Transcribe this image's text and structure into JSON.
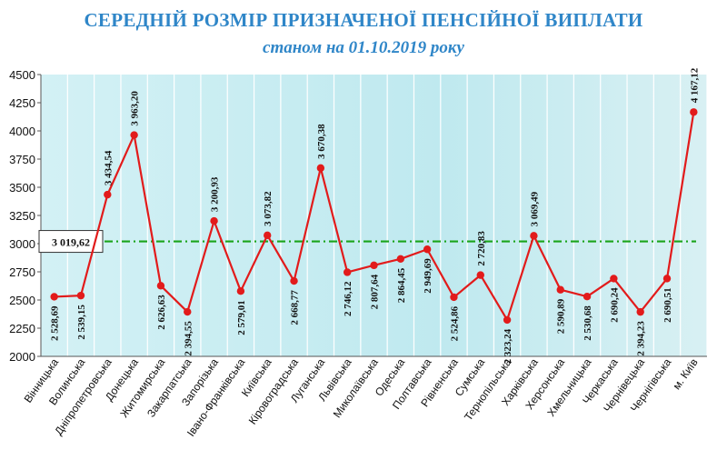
{
  "chart_data": {
    "type": "line",
    "title": "СЕРЕДНІЙ РОЗМІР ПРИЗНАЧЕНОЇ ПЕНСІЙНОЇ ВИПЛАТИ",
    "subtitle": "станом на 01.10.2019 року",
    "xlabel": "",
    "ylabel": "",
    "ylim": [
      2000,
      4500
    ],
    "yticks": [
      2000,
      2250,
      2500,
      2750,
      3000,
      3250,
      3500,
      3750,
      4000,
      4250,
      4500
    ],
    "grid": false,
    "categories": [
      "Вінницька",
      "Волинська",
      "Дніпропетровська",
      "Донецька",
      "Житомирська",
      "Закарпатська",
      "Запорізька",
      "Івано-Франківська",
      "Київська",
      "Кіровоградська",
      "Луганська",
      "Львівська",
      "Миколаївська",
      "Одеська",
      "Полтавська",
      "Рівненська",
      "Сумська",
      "Тернопільська",
      "Харківська",
      "Херсонська",
      "Хмельницька",
      "Черкаська",
      "Чернівецька",
      "Чернігівська",
      "м. Київ"
    ],
    "values": [
      2528.69,
      2539.15,
      3434.54,
      3963.2,
      2626.63,
      2394.55,
      3200.93,
      2579.01,
      3073.82,
      2668.77,
      3670.38,
      2746.12,
      2807.64,
      2864.45,
      2949.69,
      2524.86,
      2720.83,
      2323.24,
      3069.49,
      2590.89,
      2530.68,
      2690.24,
      2394.23,
      2690.51,
      4167.12
    ],
    "value_labels": [
      "2 528,69",
      "2 539,15",
      "3 434,54",
      "3 963,20",
      "2 626,63",
      "2 394,55",
      "3 200,93",
      "2 579,01",
      "3 073,82",
      "2 668,77",
      "3 670,38",
      "2 746,12",
      "2 807,64",
      "2 864,45",
      "2 949,69",
      "2 524,86",
      "2 720,83",
      "2 323,24",
      "3 069,49",
      "2 590,89",
      "2 530,68",
      "2 690,24",
      "2 394,23",
      "2 690,51",
      "4 167,12"
    ],
    "label_side": [
      "below",
      "below",
      "above",
      "above",
      "below",
      "below",
      "above",
      "below",
      "above",
      "below",
      "above",
      "below",
      "below",
      "below",
      "below",
      "below",
      "above",
      "below",
      "above",
      "below",
      "below",
      "below",
      "below",
      "below",
      "above"
    ],
    "average": {
      "value": 3019.62,
      "label": "3 019,62"
    },
    "colors": {
      "line": "#e21b1b",
      "marker": "#e21b1b",
      "average": "#1aa41a",
      "background": "#c2ecf2",
      "title": "#2f86c8"
    }
  }
}
